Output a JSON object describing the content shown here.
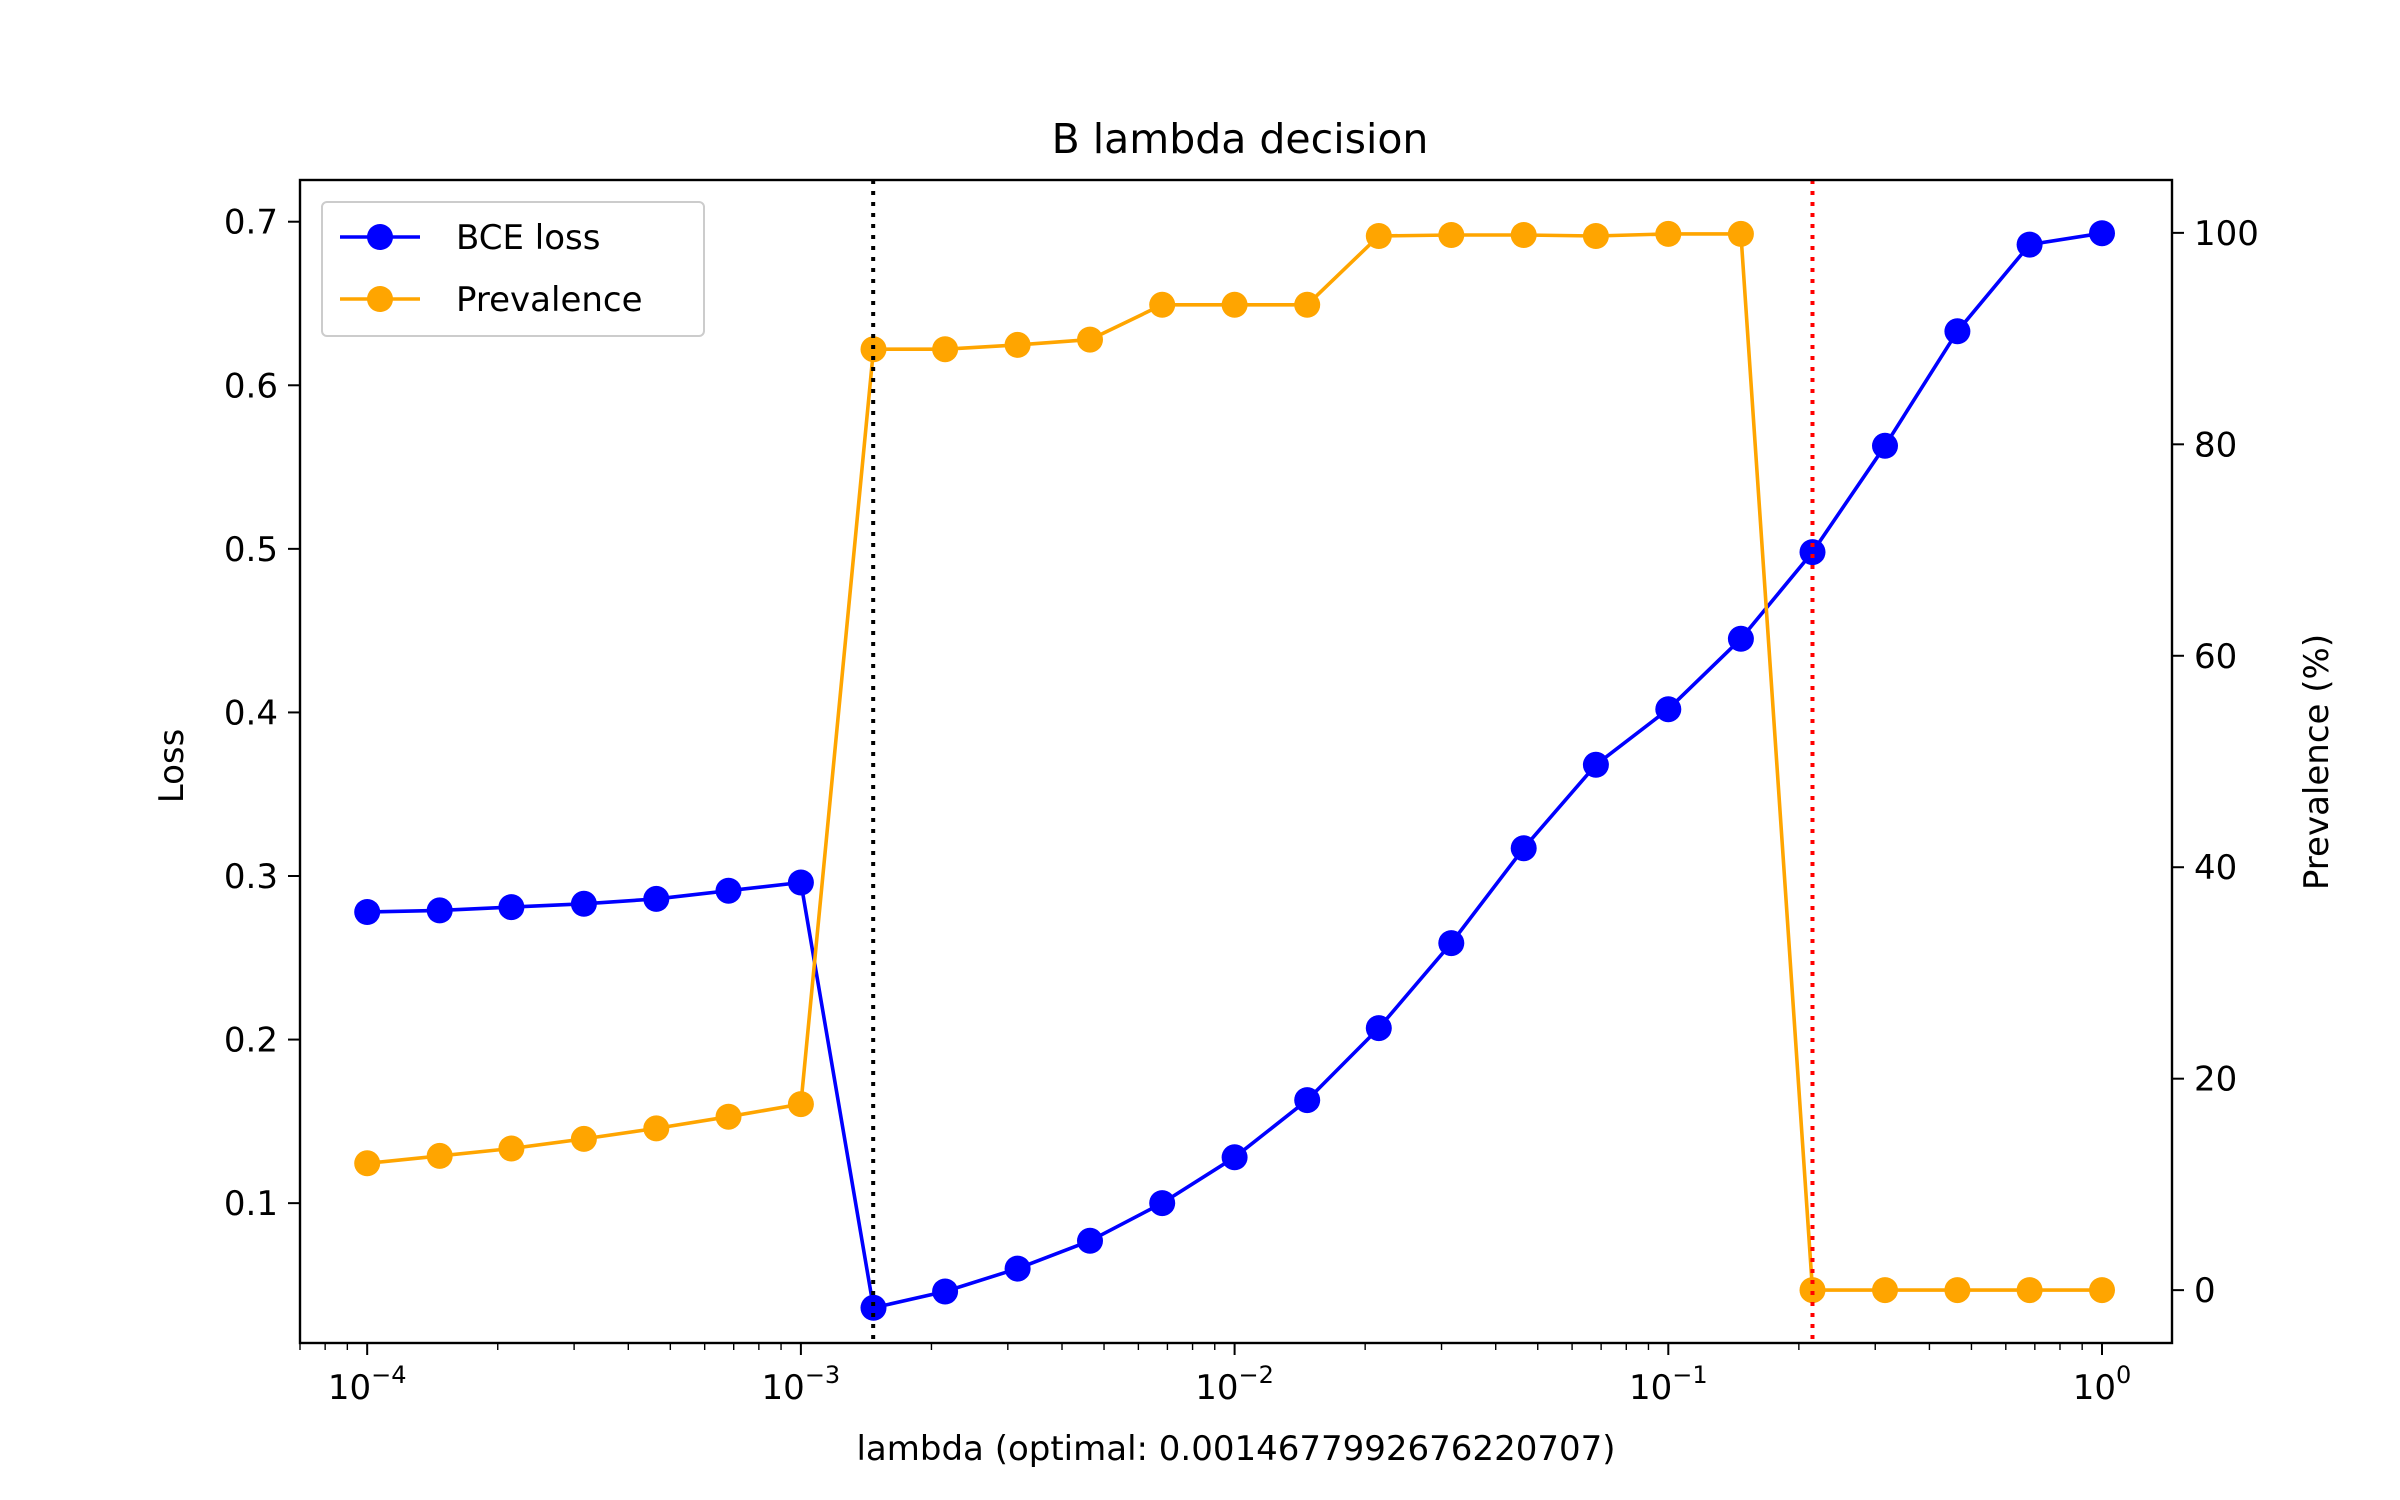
{
  "chart_data": {
    "type": "line",
    "title": "B lambda decision",
    "xlabel": "lambda (optimal: 0.0014677992676220707)",
    "ylabel_left": "Loss",
    "ylabel_right": "Prevalence (%)",
    "xscale": "log",
    "xlim": [
      7e-05,
      1.45
    ],
    "ylim_left": [
      0.0145,
      0.7255
    ],
    "ylim_right": [
      -5,
      105
    ],
    "x_ticks": [
      {
        "base": "10",
        "exp": "−4",
        "value": 0.0001
      },
      {
        "base": "10",
        "exp": "−3",
        "value": 0.001
      },
      {
        "base": "10",
        "exp": "−2",
        "value": 0.01
      },
      {
        "base": "10",
        "exp": "−1",
        "value": 0.1
      },
      {
        "base": "10",
        "exp": "0",
        "value": 1
      }
    ],
    "left_ticks": [
      {
        "label": "0.1",
        "value": 0.1
      },
      {
        "label": "0.2",
        "value": 0.2
      },
      {
        "label": "0.3",
        "value": 0.3
      },
      {
        "label": "0.4",
        "value": 0.4
      },
      {
        "label": "0.5",
        "value": 0.5
      },
      {
        "label": "0.6",
        "value": 0.6
      },
      {
        "label": "0.7",
        "value": 0.7
      }
    ],
    "right_ticks": [
      {
        "label": "0",
        "value": 0
      },
      {
        "label": "20",
        "value": 20
      },
      {
        "label": "40",
        "value": 40
      },
      {
        "label": "60",
        "value": 60
      },
      {
        "label": "80",
        "value": 80
      },
      {
        "label": "100",
        "value": 100
      }
    ],
    "x": [
      0.0001,
      0.000147,
      0.000215,
      0.000316,
      0.000464,
      0.000681,
      0.001,
      0.00147,
      0.00215,
      0.00316,
      0.00464,
      0.00681,
      0.01,
      0.0147,
      0.0215,
      0.0316,
      0.0464,
      0.0681,
      0.1,
      0.147,
      0.215,
      0.316,
      0.464,
      0.681,
      1.0
    ],
    "series": [
      {
        "name": "BCE loss",
        "axis": "left",
        "color": "#0000ff",
        "values": [
          0.278,
          0.279,
          0.281,
          0.283,
          0.286,
          0.291,
          0.296,
          0.036,
          0.046,
          0.06,
          0.077,
          0.1,
          0.128,
          0.163,
          0.207,
          0.259,
          0.317,
          0.368,
          0.402,
          0.445,
          0.498,
          0.563,
          0.633,
          0.686,
          0.693
        ]
      },
      {
        "name": "Prevalence",
        "axis": "right",
        "color": "#ffa500",
        "values": [
          12.0,
          12.7,
          13.4,
          14.3,
          15.3,
          16.4,
          17.6,
          89.0,
          89.0,
          89.4,
          89.9,
          93.2,
          93.2,
          93.2,
          99.7,
          99.8,
          99.8,
          99.7,
          99.9,
          99.9,
          0.0,
          0.0,
          0.0,
          0.0,
          0.0
        ]
      }
    ],
    "vlines": [
      {
        "name": "optimal-lambda",
        "x": 0.0014678,
        "color": "#000000"
      },
      {
        "name": "threshold-lambda",
        "x": 0.215,
        "color": "#ff0000"
      }
    ],
    "legend": {
      "placement": "upper-left",
      "entries": [
        {
          "label": "BCE loss",
          "color": "#0000ff"
        },
        {
          "label": "Prevalence",
          "color": "#ffa500"
        }
      ]
    }
  }
}
